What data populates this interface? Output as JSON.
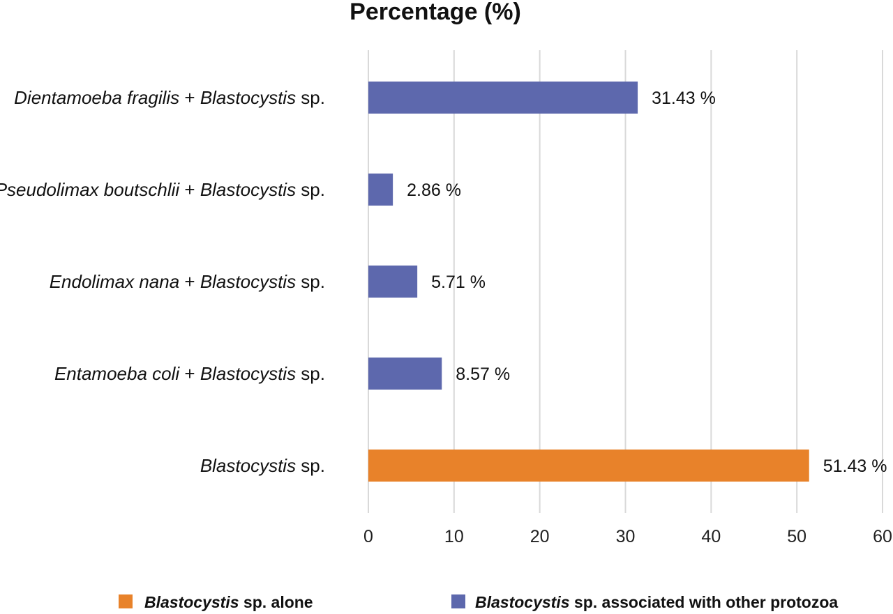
{
  "chart_data": {
    "type": "bar",
    "orientation": "horizontal",
    "title": "Percentage (%)",
    "xlabel": "",
    "ylabel": "",
    "xlim": [
      0,
      60
    ],
    "xticks": [
      "0",
      "10",
      "20",
      "30",
      "40",
      "50",
      "60"
    ],
    "grid": true,
    "legend_position": "bottom",
    "categories": [
      {
        "parts": [
          {
            "t": "Dientamoeba fragilis",
            "i": true
          },
          {
            "t": " + ",
            "i": false
          },
          {
            "t": "Blastocystis",
            "i": true
          },
          {
            "t": " sp.",
            "i": false
          }
        ]
      },
      {
        "parts": [
          {
            "t": "Pseudolimax boutschlii",
            "i": true
          },
          {
            "t": " + ",
            "i": false
          },
          {
            "t": "Blastocystis",
            "i": true
          },
          {
            "t": " sp.",
            "i": false
          }
        ]
      },
      {
        "parts": [
          {
            "t": "Endolimax nana",
            "i": true
          },
          {
            "t": " + ",
            "i": false
          },
          {
            "t": "Blastocystis",
            "i": true
          },
          {
            "t": " sp.",
            "i": false
          }
        ]
      },
      {
        "parts": [
          {
            "t": "Entamoeba coli",
            "i": true
          },
          {
            "t": " + ",
            "i": false
          },
          {
            "t": "Blastocystis",
            "i": true
          },
          {
            "t": " sp.",
            "i": false
          }
        ]
      },
      {
        "parts": [
          {
            "t": "Blastocystis",
            "i": true
          },
          {
            "t": " sp.",
            "i": false
          }
        ]
      }
    ],
    "values": [
      31.43,
      2.86,
      5.71,
      8.57,
      51.43
    ],
    "value_labels": [
      "31.43 %",
      "2.86 %",
      "5.71 %",
      "8.57 %",
      "51.43 %"
    ],
    "bar_series": [
      1,
      1,
      1,
      1,
      0
    ],
    "series": [
      {
        "name": "Blastocystis sp. alone",
        "color": "#e8822a",
        "parts": [
          {
            "t": "Blastocystis",
            "i": true
          },
          {
            "t": " sp. alone",
            "i": false
          }
        ]
      },
      {
        "name": "Blastocystis sp. associated with other protozoa",
        "color": "#5d68ad",
        "parts": [
          {
            "t": "Blastocystis",
            "i": true
          },
          {
            "t": " sp. associated with other protozoa",
            "i": false
          }
        ]
      }
    ]
  }
}
